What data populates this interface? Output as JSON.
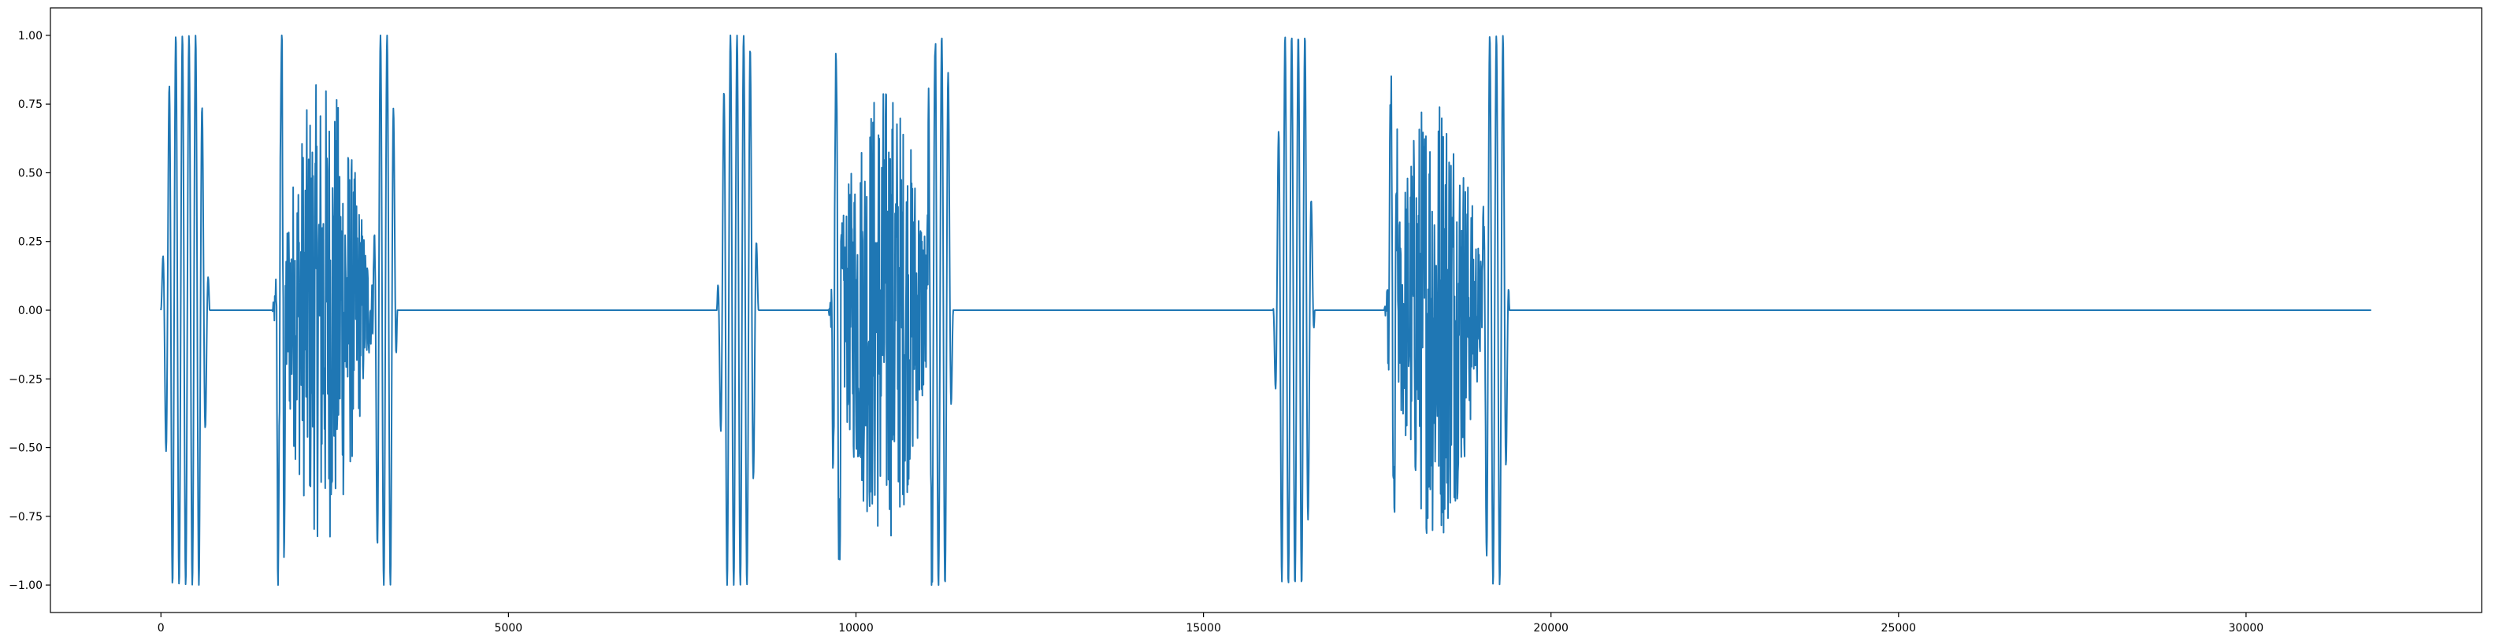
{
  "chart_data": {
    "type": "line",
    "title": "",
    "xlabel": "",
    "ylabel": "",
    "xlim": [
      -1590,
      33390
    ],
    "ylim": [
      -1.1,
      1.1
    ],
    "grid": false,
    "legend": "none",
    "x_ticks": [
      0,
      5000,
      10000,
      15000,
      20000,
      25000,
      30000
    ],
    "x_tick_labels": [
      "0",
      "5000",
      "10000",
      "15000",
      "20000",
      "25000",
      "30000"
    ],
    "y_ticks": [
      -1.0,
      -0.75,
      -0.5,
      -0.25,
      0.0,
      0.25,
      0.5,
      0.75,
      1.0
    ],
    "y_tick_labels": [
      "−1.00",
      "−0.75",
      "−0.50",
      "−0.25",
      "0.00",
      "0.25",
      "0.50",
      "0.75",
      "1.00"
    ],
    "series": [
      {
        "color": "#1f77b4",
        "x_start": 0,
        "x_end": 31800,
        "description_of_signal": [],
        "bursts": [
          {
            "start": 0,
            "end": 700,
            "peak": 1.0,
            "kind": "sweep"
          },
          {
            "start": 1600,
            "end": 3100,
            "peak": 0.85,
            "kind": "noise"
          },
          {
            "start": 1650,
            "end": 1800,
            "peak": 1.0,
            "kind": "sweep"
          },
          {
            "start": 3050,
            "end": 3400,
            "peak": 1.0,
            "kind": "sweep"
          },
          {
            "start": 8000,
            "end": 8600,
            "peak": 1.0,
            "kind": "sweep"
          },
          {
            "start": 9600,
            "end": 11200,
            "peak": 0.85,
            "kind": "noise"
          },
          {
            "start": 9650,
            "end": 9800,
            "peak": 0.9,
            "kind": "sweep"
          },
          {
            "start": 11000,
            "end": 11400,
            "peak": 1.0,
            "kind": "sweep"
          },
          {
            "start": 16000,
            "end": 16600,
            "peak": 1.0,
            "kind": "sweep"
          },
          {
            "start": 17600,
            "end": 19100,
            "peak": 0.85,
            "kind": "noise"
          },
          {
            "start": 17650,
            "end": 17800,
            "peak": 0.8,
            "kind": "sweep"
          },
          {
            "start": 19000,
            "end": 19400,
            "peak": 1.0,
            "kind": "sweep"
          }
        ]
      }
    ]
  }
}
